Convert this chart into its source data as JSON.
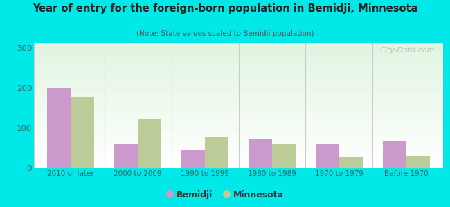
{
  "categories": [
    "2010 or later",
    "2000 to 2009",
    "1990 to 1999",
    "1980 to 1989",
    "1970 to 1979",
    "Before 1970"
  ],
  "bemidji_values": [
    200,
    60,
    43,
    70,
    60,
    65
  ],
  "minnesota_values": [
    175,
    120,
    78,
    60,
    25,
    30
  ],
  "bemidji_color": "#cc99cc",
  "minnesota_color": "#bbcc99",
  "title": "Year of entry for the foreign-born population in Bemidji, Minnesota",
  "subtitle": "(Note: State values scaled to Bemidji population)",
  "ylim": [
    0,
    310
  ],
  "yticks": [
    0,
    100,
    200,
    300
  ],
  "background_outer": "#00e8e8",
  "bar_width": 0.35,
  "legend_bemidji": "Bemidji",
  "legend_minnesota": "Minnesota",
  "watermark": "City-Data.com"
}
